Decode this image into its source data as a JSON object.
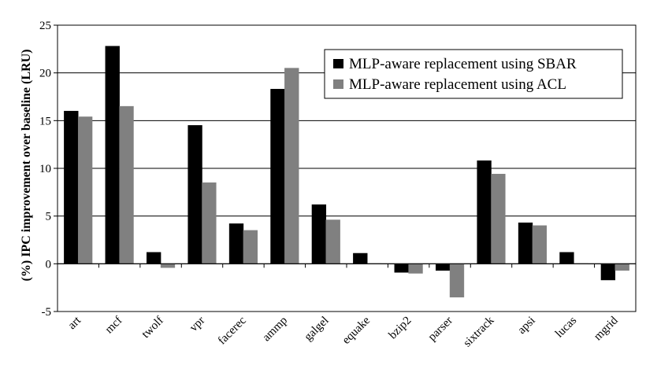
{
  "chart_data": {
    "type": "bar",
    "title": "",
    "xlabel": "",
    "ylabel": "(%) IPC improvement over baseline (LRU)",
    "ylim": [
      -5,
      25
    ],
    "yticks": [
      -5,
      0,
      5,
      10,
      15,
      20,
      25
    ],
    "grid": "horizontal",
    "legend_position": "top-right",
    "categories": [
      "art",
      "mcf",
      "twolf",
      "vpr",
      "facerec",
      "ammp",
      "galgel",
      "equake",
      "bzip2",
      "parser",
      "sixtrack",
      "apsi",
      "lucas",
      "mgrid"
    ],
    "series": [
      {
        "name": "MLP-aware replacement using SBAR",
        "color": "#000000",
        "values": [
          16.0,
          22.8,
          1.2,
          14.5,
          4.2,
          18.3,
          6.2,
          1.1,
          -0.9,
          -0.7,
          10.8,
          4.3,
          1.2,
          -1.7
        ]
      },
      {
        "name": "MLP-aware replacement using ACL",
        "color": "#808080",
        "values": [
          15.4,
          16.5,
          -0.4,
          8.5,
          3.5,
          20.5,
          4.6,
          0.0,
          -1.0,
          -3.5,
          9.4,
          4.0,
          0.0,
          -0.7
        ]
      }
    ]
  }
}
